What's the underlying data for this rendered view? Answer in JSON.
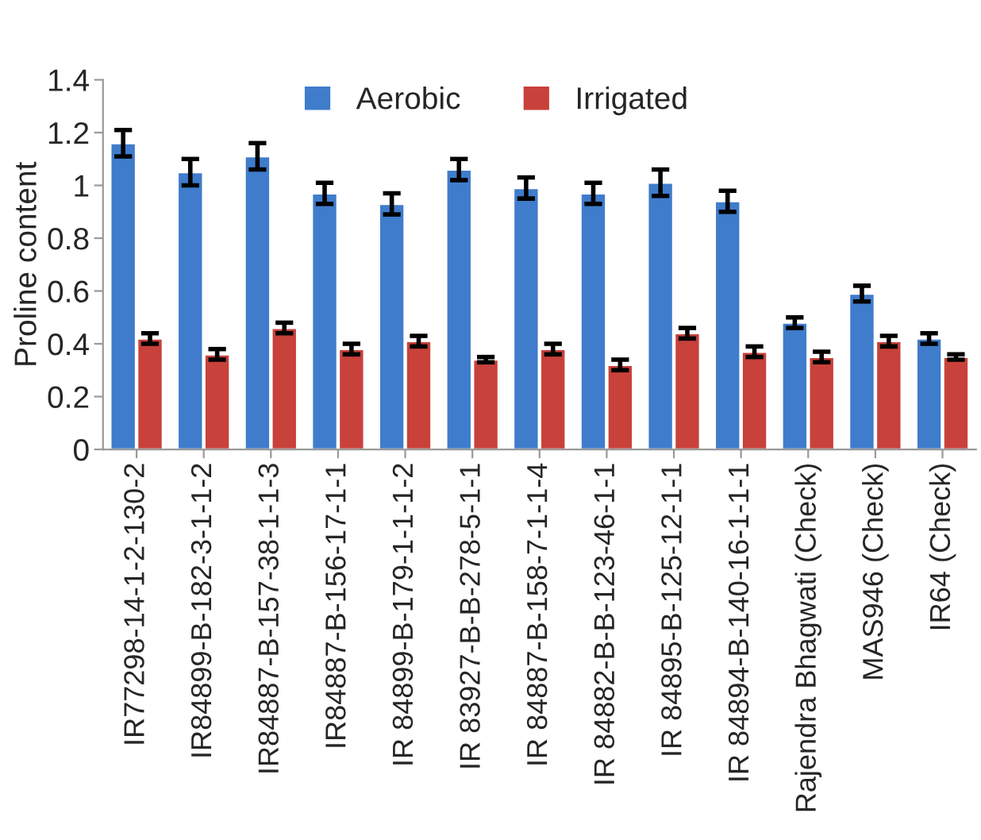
{
  "chart_data": {
    "type": "bar",
    "ylabel": "Proline content",
    "categories": [
      "IR77298-14-1-2-130-2",
      "IR84899-B-182-3-1-1-2",
      "IR84887-B-157-38-1-1-3",
      "IR84887-B-156-17-1-1",
      "IR 84899-B-179-1-1-1-2",
      "IR 83927-B-B-278-5-1-1",
      "IR 84887-B-158-7-1-1-4",
      "IR 84882-B-B-123-46-1-1",
      "IR 84895-B-125-12-1-1",
      "IR 84894-B-140-16-1-1-1",
      "Rajendra Bhagwati (Check)",
      "MAS946 (Check)",
      "IR64 (Check)"
    ],
    "series": [
      {
        "name": "Aerobic",
        "color": "#3f7ccb",
        "values": [
          1.16,
          1.05,
          1.11,
          0.97,
          0.93,
          1.06,
          0.99,
          0.97,
          1.01,
          0.94,
          0.48,
          0.59,
          0.42
        ],
        "errors": [
          0.05,
          0.05,
          0.05,
          0.04,
          0.04,
          0.04,
          0.04,
          0.04,
          0.05,
          0.04,
          0.02,
          0.03,
          0.02
        ]
      },
      {
        "name": "Irrigated",
        "color": "#c8413b",
        "values": [
          0.42,
          0.36,
          0.46,
          0.38,
          0.41,
          0.34,
          0.38,
          0.32,
          0.44,
          0.37,
          0.35,
          0.41,
          0.35
        ],
        "errors": [
          0.02,
          0.02,
          0.02,
          0.02,
          0.02,
          0.01,
          0.02,
          0.02,
          0.02,
          0.02,
          0.02,
          0.02,
          0.01
        ]
      }
    ],
    "ylim": [
      0,
      1.4
    ],
    "yticks": [
      0,
      0.2,
      0.4,
      0.6,
      0.8,
      1,
      1.2,
      1.4
    ],
    "grid": false,
    "legend": "top"
  }
}
